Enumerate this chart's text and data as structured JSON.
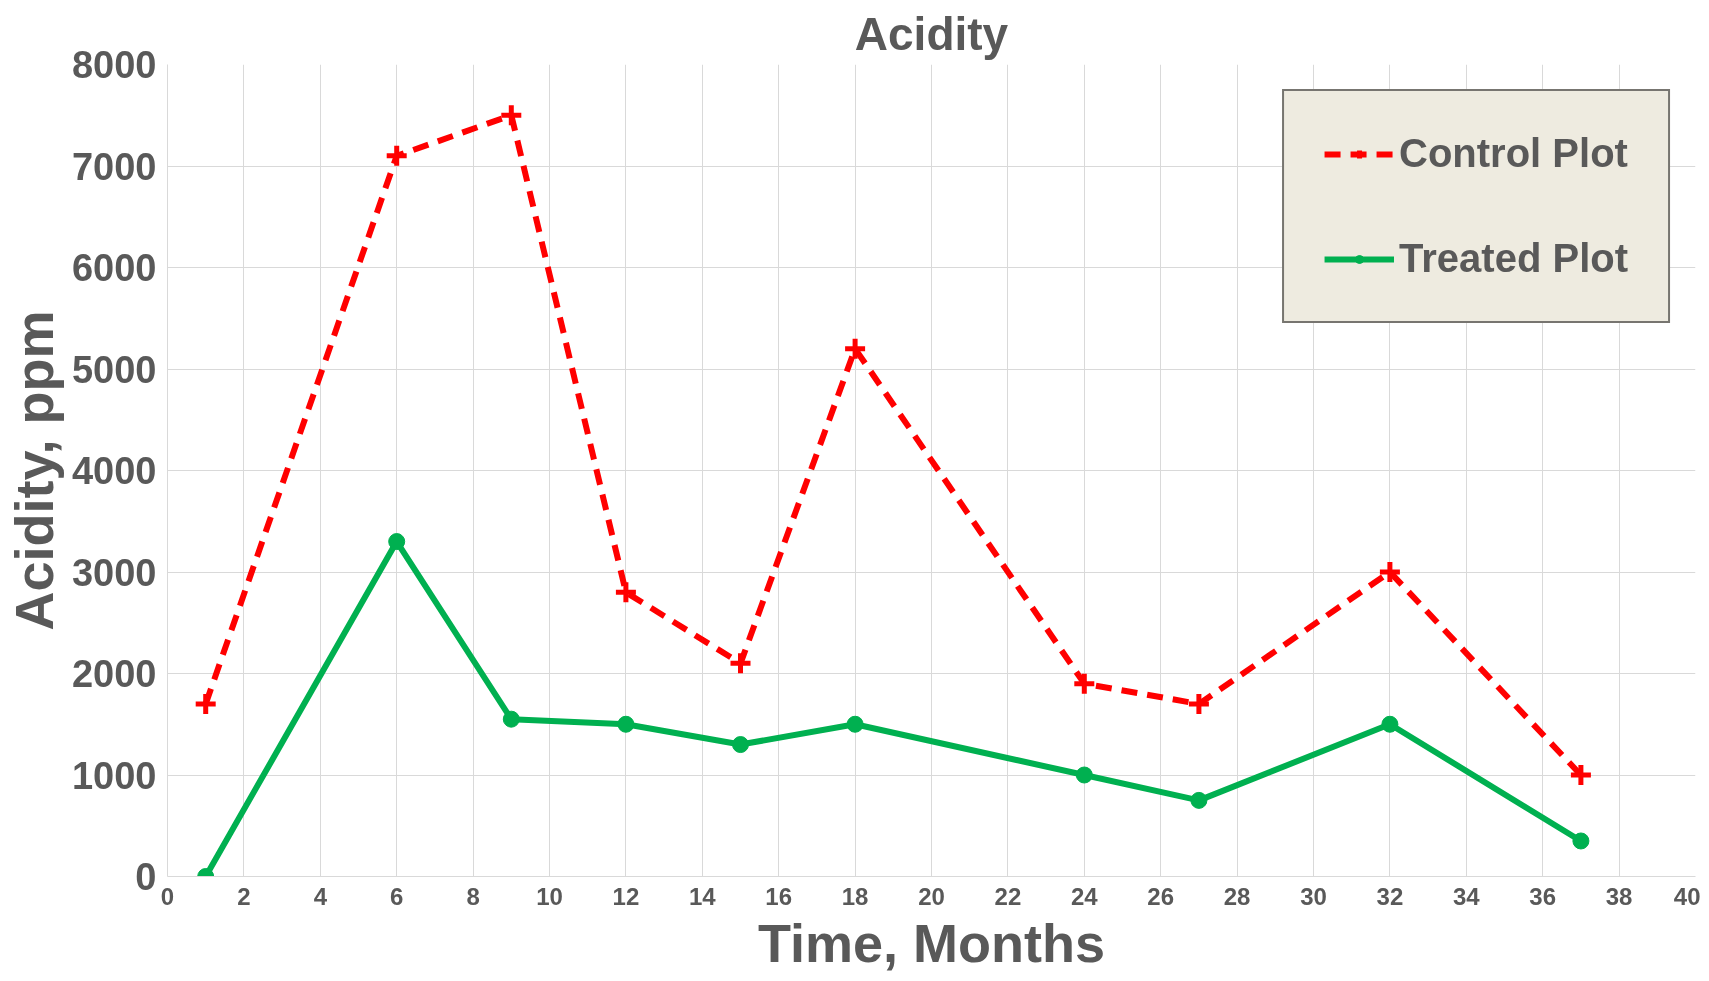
{
  "chart_data": {
    "type": "line",
    "title": "Acidity",
    "xlabel": "Time, Months",
    "ylabel": "Acidity, ppm",
    "x": [
      1,
      6,
      9,
      12,
      15,
      18,
      24,
      27,
      32,
      37
    ],
    "series": [
      {
        "name": "Control Plot",
        "color": "#ff0000",
        "marker": "cross",
        "line_style": "dashed",
        "values": [
          1700,
          7100,
          7500,
          2800,
          2100,
          5200,
          1900,
          1700,
          3000,
          1000
        ]
      },
      {
        "name": "Treated Plot",
        "color": "#00b050",
        "marker": "circle",
        "line_style": "solid",
        "values": [
          0,
          3300,
          1550,
          1500,
          1300,
          1500,
          1000,
          750,
          1500,
          350
        ]
      }
    ],
    "xlim": [
      0,
      40
    ],
    "xticks": [
      0,
      2,
      4,
      6,
      8,
      10,
      12,
      14,
      16,
      18,
      20,
      22,
      24,
      26,
      28,
      30,
      32,
      34,
      36,
      38,
      40
    ],
    "ylim": [
      0,
      8000
    ],
    "yticks": [
      0,
      1000,
      2000,
      3000,
      4000,
      5000,
      6000,
      7000,
      8000
    ],
    "grid": true,
    "legend": "top right"
  }
}
